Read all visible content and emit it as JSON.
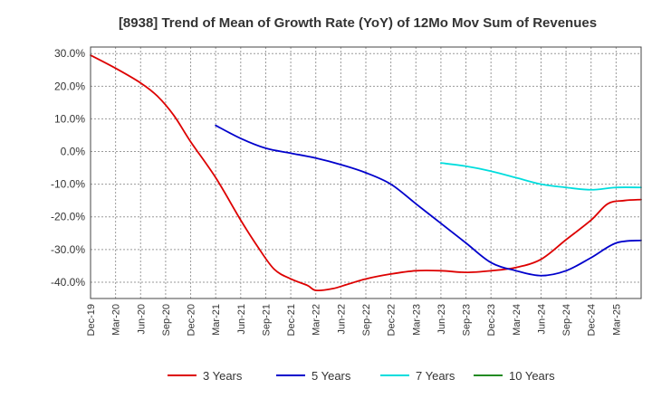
{
  "chart_data": {
    "type": "line",
    "title": "[8938]  Trend of Mean of Growth Rate (YoY) of 12Mo Mov Sum of Revenues",
    "xlabel": "",
    "ylabel": "",
    "ylim": [
      -45,
      32
    ],
    "yticks": [
      30,
      20,
      10,
      0,
      -10,
      -20,
      -30,
      -40
    ],
    "ytick_labels": [
      "30.0%",
      "20.0%",
      "10.0%",
      "0.0%",
      "-10.0%",
      "-20.0%",
      "-30.0%",
      "-40.0%"
    ],
    "x_range_months": [
      0,
      66
    ],
    "xtick_labels": [
      "Dec-19",
      "Mar-20",
      "Jun-20",
      "Sep-20",
      "Dec-20",
      "Mar-21",
      "Jun-21",
      "Sep-21",
      "Dec-21",
      "Mar-22",
      "Jun-22",
      "Sep-22",
      "Dec-22",
      "Mar-23",
      "Jun-23",
      "Sep-23",
      "Dec-23",
      "Mar-24",
      "Jun-24",
      "Sep-24",
      "Dec-24",
      "Mar-25"
    ],
    "legend_position": "bottom",
    "grid": true,
    "series": [
      {
        "name": "3 Years",
        "color": "#dd0000",
        "x": [
          0,
          3,
          6,
          8,
          10,
          12,
          15,
          18,
          20,
          22,
          24,
          26,
          27,
          29,
          31,
          33,
          36,
          39,
          42,
          45,
          48,
          51,
          54,
          57,
          60,
          62,
          64,
          66
        ],
        "values": [
          29.5,
          25.5,
          21,
          17,
          11,
          3,
          -8,
          -21,
          -29,
          -36,
          -39,
          -41,
          -42.5,
          -42,
          -40.5,
          -39,
          -37.5,
          -36.5,
          -36.5,
          -37,
          -36.5,
          -35.5,
          -33,
          -27,
          -21,
          -16,
          -15,
          -14.7
        ]
      },
      {
        "name": "5 Years",
        "color": "#0000cc",
        "x": [
          15,
          18,
          21,
          24,
          27,
          30,
          33,
          36,
          39,
          42,
          45,
          48,
          51,
          54,
          57,
          60,
          63,
          66
        ],
        "values": [
          8,
          4,
          1,
          -0.5,
          -2,
          -4,
          -6.5,
          -10,
          -16,
          -22,
          -28,
          -34,
          -36.5,
          -38,
          -36.5,
          -32.5,
          -28,
          -27.2
        ]
      },
      {
        "name": "7 Years",
        "color": "#00dddd",
        "x": [
          42,
          45,
          48,
          51,
          54,
          57,
          60,
          63,
          66
        ],
        "values": [
          -3.5,
          -4.5,
          -6,
          -8,
          -10,
          -11,
          -11.7,
          -11,
          -11
        ]
      },
      {
        "name": "10 Years",
        "color": "#228b22",
        "x": [],
        "values": []
      }
    ]
  }
}
